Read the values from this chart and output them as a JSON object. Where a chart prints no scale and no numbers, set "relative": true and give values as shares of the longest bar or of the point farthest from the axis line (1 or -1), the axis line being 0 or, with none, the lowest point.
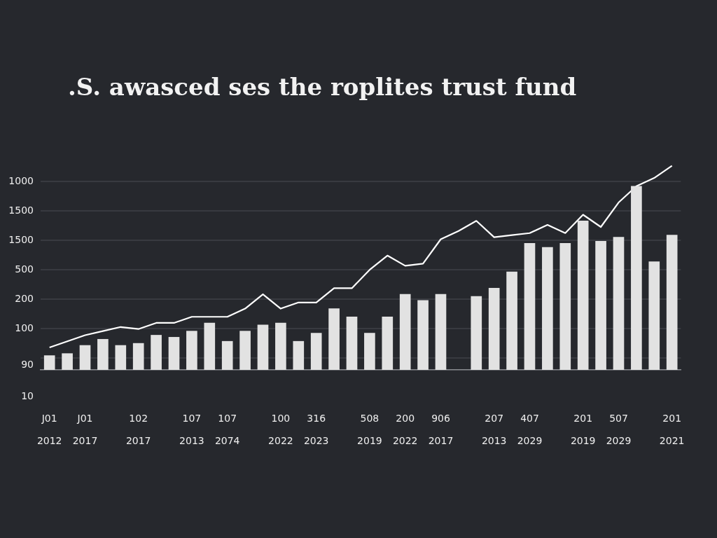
{
  "chart_data": {
    "type": "bar",
    "title": ".S. awasced ses the roplites trust fund",
    "relative": true,
    "categories": [
      "J01\n2012",
      null,
      "J01\n2017",
      null,
      null,
      "102\n2017",
      null,
      null,
      "107\n2013",
      null,
      "107\n2074",
      null,
      null,
      "100\n2022",
      null,
      "316\n2023",
      null,
      null,
      "508\n2019",
      null,
      "200\n2022",
      null,
      "906\n2017",
      null,
      null,
      "207\n2013",
      null,
      "407\n2029",
      null,
      null,
      "201\n2019",
      null,
      "507\n2029",
      null,
      null,
      "201\n2021"
    ],
    "annotations": [
      "1000",
      "1500",
      "1500",
      "500",
      "200",
      "100",
      "90",
      "10"
    ],
    "grid": "y",
    "marker": "none",
    "series": [
      {
        "color": "#e2e2e2",
        "values": [
          0.07,
          0.08,
          0.12,
          0.15,
          0.12,
          0.13,
          0.17,
          0.16,
          0.19,
          0.23,
          0.14,
          0.19,
          0.22,
          0.23,
          0.14,
          0.18,
          0.3,
          0.26,
          0.18,
          0.26,
          0.37,
          0.34,
          0.37,
          null,
          0.36,
          0.4,
          0.48,
          0.62,
          0.6,
          0.62,
          0.73,
          0.63,
          0.65,
          0.9,
          0.53,
          0.66
        ]
      },
      {
        "type": "line",
        "color": "#ffffff",
        "values": [
          0.11,
          0.14,
          0.17,
          0.19,
          0.21,
          0.2,
          0.23,
          0.23,
          0.26,
          0.26,
          0.26,
          0.3,
          0.37,
          0.3,
          0.33,
          0.33,
          0.4,
          0.4,
          0.49,
          0.56,
          0.51,
          0.52,
          0.64,
          0.68,
          0.73,
          0.65,
          0.66,
          0.67,
          0.71,
          0.67,
          0.76,
          0.7,
          0.82,
          0.9,
          0.94,
          1.0
        ]
      }
    ]
  }
}
